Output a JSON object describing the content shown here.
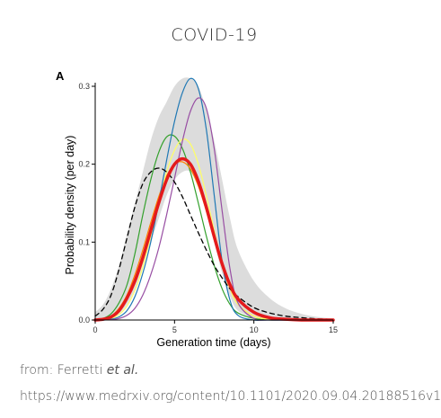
{
  "header": {
    "title": "COVID-19"
  },
  "chart_data": {
    "type": "line",
    "panel_label": "A",
    "xlabel": "Generation time (days)",
    "ylabel": "Probability density (per day)",
    "xlim": [
      0,
      15
    ],
    "ylim": [
      0,
      0.3
    ],
    "xticks": [
      "0",
      "5",
      "10",
      "15"
    ],
    "yticks": [
      "0.0",
      "0.1",
      "0.2",
      "0.3"
    ],
    "grid": false,
    "legend": "none",
    "band": {
      "x": [
        0,
        0.5,
        1,
        1.5,
        2,
        2.5,
        3,
        3.5,
        4,
        4.5,
        5,
        5.5,
        6,
        6.5,
        7,
        7.5,
        8,
        8.5,
        9,
        10,
        11,
        12,
        13,
        14,
        15
      ],
      "lower": [
        0,
        0,
        0.002,
        0.008,
        0.02,
        0.04,
        0.07,
        0.1,
        0.13,
        0.16,
        0.18,
        0.19,
        0.19,
        0.17,
        0.14,
        0.1,
        0.06,
        0.03,
        0.012,
        0.003,
        0.001,
        0,
        0,
        0,
        0
      ],
      "upper": [
        0.01,
        0.02,
        0.04,
        0.07,
        0.11,
        0.15,
        0.19,
        0.23,
        0.26,
        0.28,
        0.3,
        0.31,
        0.31,
        0.3,
        0.27,
        0.23,
        0.18,
        0.13,
        0.09,
        0.05,
        0.028,
        0.015,
        0.008,
        0.004,
        0.002
      ]
    },
    "series": [
      {
        "color": "#e41a1c",
        "width": 3.5,
        "dash": "",
        "x": [
          0,
          0.5,
          1,
          1.5,
          2,
          2.5,
          3,
          3.5,
          4,
          4.5,
          5,
          5.5,
          6,
          6.5,
          7,
          7.5,
          8,
          8.5,
          9,
          10,
          11,
          12,
          13,
          14,
          15
        ],
        "y": [
          0,
          0.001,
          0.004,
          0.012,
          0.028,
          0.05,
          0.08,
          0.115,
          0.15,
          0.18,
          0.2,
          0.207,
          0.2,
          0.178,
          0.145,
          0.107,
          0.072,
          0.045,
          0.027,
          0.01,
          0.003,
          0.001,
          0,
          0,
          0
        ]
      },
      {
        "color": "#33a02c",
        "width": 1.2,
        "dash": "",
        "x": [
          0,
          0.5,
          1,
          1.5,
          2,
          2.5,
          3,
          3.5,
          4,
          4.5,
          5,
          5.5,
          6,
          6.5,
          7,
          7.5,
          8,
          8.5,
          9,
          10,
          11,
          12,
          15
        ],
        "y": [
          0,
          0.002,
          0.008,
          0.022,
          0.045,
          0.085,
          0.135,
          0.18,
          0.215,
          0.235,
          0.236,
          0.22,
          0.19,
          0.15,
          0.108,
          0.07,
          0.04,
          0.02,
          0.009,
          0.002,
          0,
          0,
          0
        ]
      },
      {
        "color": "#ff7f00",
        "width": 1.2,
        "dash": "",
        "x": [
          0,
          0.5,
          1,
          1.5,
          2,
          2.5,
          3,
          3.5,
          4,
          4.5,
          5,
          5.5,
          6,
          6.5,
          7,
          7.5,
          8,
          8.5,
          9,
          10,
          11,
          12,
          15
        ],
        "y": [
          0,
          0.001,
          0.005,
          0.015,
          0.032,
          0.058,
          0.09,
          0.125,
          0.158,
          0.185,
          0.2,
          0.203,
          0.194,
          0.172,
          0.14,
          0.103,
          0.068,
          0.04,
          0.02,
          0.005,
          0.001,
          0,
          0
        ]
      },
      {
        "color": "#ffff66",
        "width": 1.2,
        "dash": "",
        "x": [
          0,
          0.5,
          1,
          1.5,
          2,
          2.5,
          3,
          3.5,
          4,
          4.5,
          5,
          5.5,
          6,
          6.5,
          7,
          7.5,
          8,
          8.5,
          9,
          10,
          11,
          12,
          15
        ],
        "y": [
          0,
          0.0005,
          0.002,
          0.007,
          0.018,
          0.038,
          0.068,
          0.108,
          0.15,
          0.19,
          0.218,
          0.232,
          0.226,
          0.2,
          0.16,
          0.115,
          0.072,
          0.04,
          0.02,
          0.005,
          0.001,
          0,
          0
        ]
      },
      {
        "color": "#1f78b4",
        "width": 1.2,
        "dash": "",
        "x": [
          0,
          0.5,
          1,
          1.5,
          2,
          2.5,
          3,
          3.5,
          4,
          4.5,
          5,
          5.5,
          6,
          6.5,
          7,
          7.5,
          8,
          8.5,
          9,
          10,
          11,
          15
        ],
        "y": [
          0,
          0,
          0.001,
          0.004,
          0.012,
          0.03,
          0.06,
          0.1,
          0.15,
          0.205,
          0.255,
          0.292,
          0.31,
          0.297,
          0.245,
          0.16,
          0.075,
          0.025,
          0.006,
          0,
          0,
          0
        ]
      },
      {
        "color": "#984ea3",
        "width": 1.2,
        "dash": "",
        "x": [
          0,
          0.5,
          1,
          1.5,
          2,
          2.5,
          3,
          3.5,
          4,
          4.5,
          5,
          5.5,
          6,
          6.5,
          7,
          7.5,
          8,
          8.5,
          9,
          10,
          11,
          15
        ],
        "y": [
          0,
          0,
          0.0005,
          0.002,
          0.006,
          0.015,
          0.032,
          0.058,
          0.092,
          0.135,
          0.182,
          0.23,
          0.268,
          0.285,
          0.272,
          0.22,
          0.14,
          0.065,
          0.022,
          0.002,
          0,
          0
        ]
      },
      {
        "color": "#000000",
        "width": 1.3,
        "dash": "5,4",
        "x": [
          0,
          0.5,
          1,
          1.5,
          2,
          2.5,
          3,
          3.5,
          4,
          4.5,
          5,
          5.5,
          6,
          6.5,
          7,
          7.5,
          8,
          8.5,
          9,
          10,
          11,
          12,
          13,
          14,
          15
        ],
        "y": [
          0.005,
          0.014,
          0.032,
          0.065,
          0.105,
          0.145,
          0.175,
          0.19,
          0.195,
          0.19,
          0.177,
          0.158,
          0.135,
          0.112,
          0.09,
          0.07,
          0.054,
          0.04,
          0.03,
          0.016,
          0.009,
          0.005,
          0.003,
          0.0015,
          0.0008
        ]
      }
    ]
  },
  "caption": {
    "line1_prefix": "from: Ferretti ",
    "line1_italic": "et al.",
    "line2": "https://www.medrxiv.org/content/10.1101/2020.09.04.20188516v1"
  }
}
